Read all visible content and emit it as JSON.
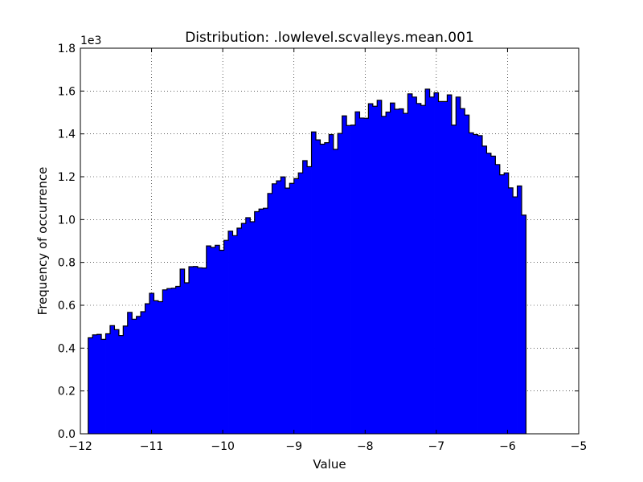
{
  "chart_data": {
    "type": "histogram",
    "title": "Distribution: .lowlevel.scvalleys.mean.001",
    "xlabel": "Value",
    "ylabel": "Frequency of occurrence",
    "y_multiplier_label": "1e3",
    "xlim": [
      -12,
      -5
    ],
    "ylim": [
      0,
      1.8
    ],
    "x_ticks": [
      -12,
      -11,
      -10,
      -9,
      -8,
      -7,
      -6,
      -5
    ],
    "x_tick_labels": [
      "−12",
      "−11",
      "−10",
      "−9",
      "−8",
      "−7",
      "−6",
      "−5"
    ],
    "y_ticks": [
      0,
      0.2,
      0.4,
      0.6,
      0.8,
      1.0,
      1.2,
      1.4,
      1.6,
      1.8
    ],
    "y_tick_labels": [
      "0.0",
      "0.2",
      "0.4",
      "0.6",
      "0.8",
      "1.0",
      "1.2",
      "1.4",
      "1.6",
      "1.8"
    ],
    "grid": true,
    "bin_start": -11.89,
    "bin_end": -5.74,
    "bar_color": "#0000ff",
    "edge_color": "#000000",
    "values": [
      0.448,
      0.462,
      0.464,
      0.441,
      0.467,
      0.505,
      0.486,
      0.459,
      0.503,
      0.567,
      0.535,
      0.548,
      0.57,
      0.607,
      0.656,
      0.621,
      0.617,
      0.672,
      0.678,
      0.68,
      0.688,
      0.769,
      0.705,
      0.78,
      0.781,
      0.775,
      0.774,
      0.877,
      0.87,
      0.88,
      0.857,
      0.903,
      0.946,
      0.925,
      0.96,
      0.982,
      1.009,
      0.99,
      1.037,
      1.049,
      1.053,
      1.122,
      1.167,
      1.181,
      1.199,
      1.147,
      1.169,
      1.191,
      1.218,
      1.275,
      1.247,
      1.409,
      1.372,
      1.352,
      1.359,
      1.397,
      1.328,
      1.402,
      1.484,
      1.439,
      1.441,
      1.503,
      1.474,
      1.473,
      1.541,
      1.529,
      1.557,
      1.482,
      1.502,
      1.544,
      1.515,
      1.517,
      1.496,
      1.587,
      1.572,
      1.542,
      1.533,
      1.609,
      1.572,
      1.592,
      1.551,
      1.551,
      1.582,
      1.441,
      1.572,
      1.518,
      1.488,
      1.405,
      1.397,
      1.392,
      1.343,
      1.31,
      1.296,
      1.257,
      1.209,
      1.218,
      1.148,
      1.106,
      1.157,
      1.021
    ]
  }
}
